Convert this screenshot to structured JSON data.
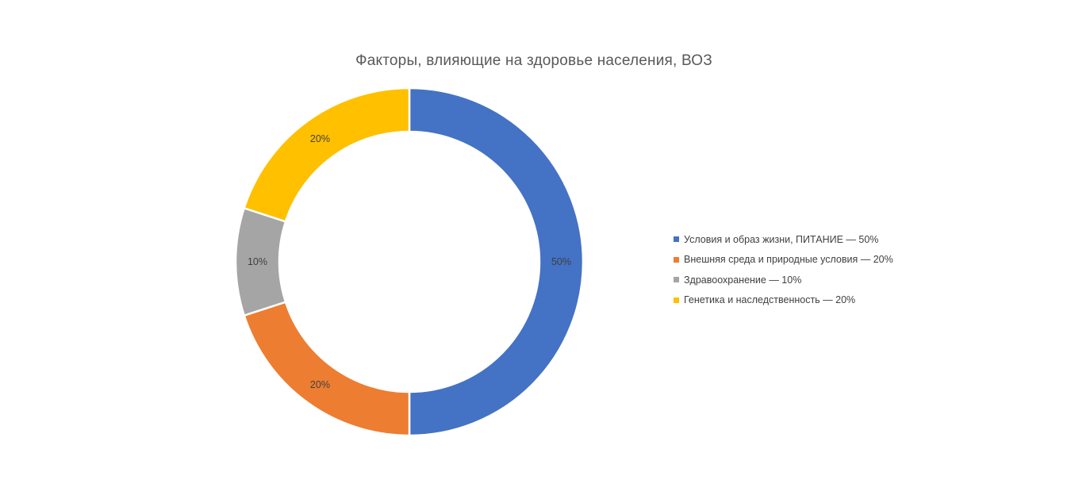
{
  "chart_data": {
    "type": "pie",
    "variant": "doughnut",
    "title": "Факторы, влияющие на здоровье населения, ВОЗ",
    "slices": [
      {
        "label": "Условия и образ жизни, ПИТАНИЕ — 50%",
        "value": 50,
        "data_label": "50%",
        "color": "#4472C4"
      },
      {
        "label": "Внешняя среда и природные условия — 20%",
        "value": 20,
        "data_label": "20%",
        "color": "#ED7D31"
      },
      {
        "label": "Здравоохранение — 10%",
        "value": 10,
        "data_label": "10%",
        "color": "#A5A5A5"
      },
      {
        "label": "Генетика и наследственность — 20%",
        "value": 20,
        "data_label": "20%",
        "color": "#FFC000"
      }
    ],
    "legend_position": "right"
  }
}
